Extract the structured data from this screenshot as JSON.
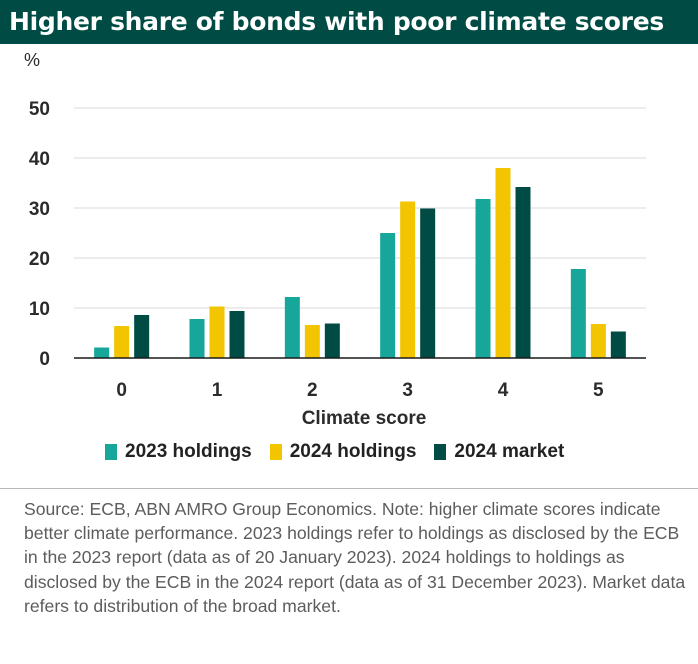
{
  "title": "Higher share of bonds with poor climate scores",
  "colors": {
    "title_bg": "#004c45",
    "s2023": "#16a69a",
    "s2024": "#f2c500",
    "market": "#004c45"
  },
  "chart_data": {
    "type": "bar",
    "title": "Higher share of bonds with poor climate scores",
    "ylabel": "%",
    "xlabel": "Climate score",
    "ylim": [
      0,
      50
    ],
    "yticks": [
      0,
      10,
      20,
      30,
      40,
      50
    ],
    "categories": [
      "0",
      "1",
      "2",
      "3",
      "4",
      "5"
    ],
    "series": [
      {
        "name": "2023 holdings",
        "color": "#16a69a",
        "values": [
          2.1,
          7.8,
          12.2,
          25.0,
          31.8,
          17.8
        ]
      },
      {
        "name": "2024 holdings",
        "color": "#f2c500",
        "values": [
          6.4,
          10.3,
          6.6,
          31.3,
          38.0,
          6.8
        ]
      },
      {
        "name": "2024 market",
        "color": "#004c45",
        "values": [
          8.6,
          9.4,
          6.9,
          29.9,
          34.2,
          5.3
        ]
      }
    ],
    "grid": true,
    "legend": "bottom"
  },
  "source_note": "Source: ECB, ABN AMRO Group Economics. Note: higher climate scores indicate better climate performance. 2023 holdings refer to holdings as disclosed by the ECB in the 2023 report (data as of 20 January 2023). 2024 holdings  to holdings as disclosed by the ECB in the 2024 report (data as of 31 December 2023). Market data refers to distribution of the broad market."
}
